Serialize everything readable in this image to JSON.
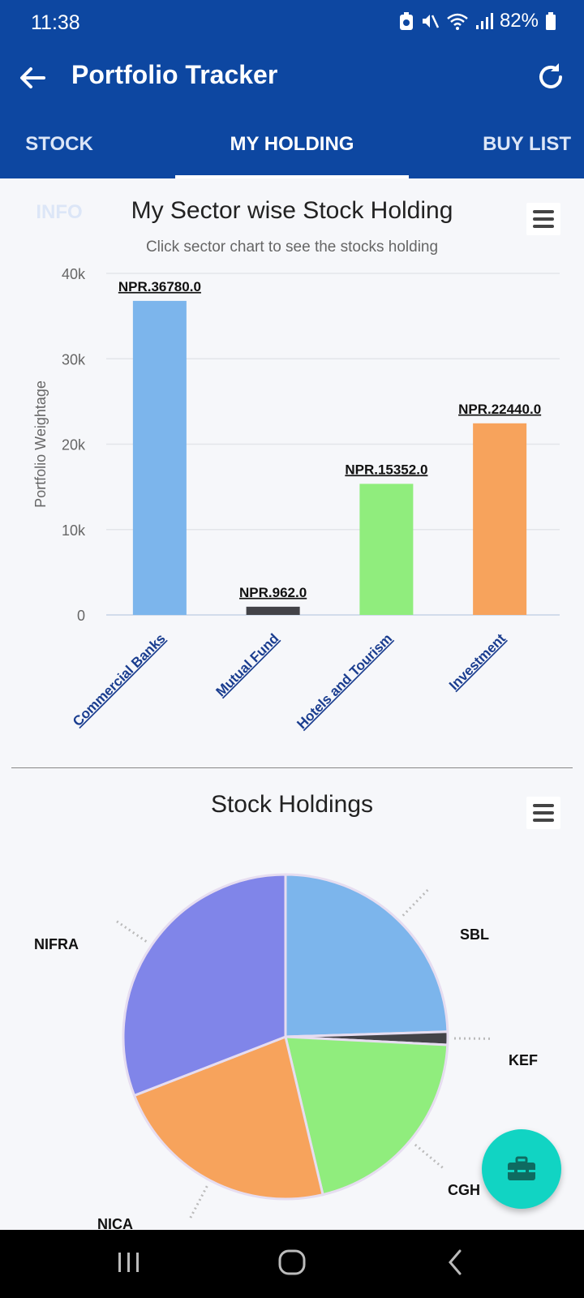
{
  "status": {
    "time": "11:38",
    "battery": "82%"
  },
  "appbar": {
    "title": "Portfolio Tracker",
    "back_icon": "arrow-left-icon",
    "refresh_icon": "refresh-icon"
  },
  "tabs": [
    {
      "label": "STOCK INFO",
      "active": false
    },
    {
      "label": "MY HOLDING",
      "active": true
    },
    {
      "label": "BUY LIST",
      "active": false
    }
  ],
  "chart_data": [
    {
      "type": "bar",
      "title": "My Sector wise Stock Holding",
      "subtitle": "Click sector chart to see the stocks holding",
      "ylabel": "Portfolio Weightage",
      "ylim": [
        0,
        40000
      ],
      "yticks": [
        "0",
        "10k",
        "20k",
        "30k",
        "40k"
      ],
      "yticks_values": [
        0,
        10000,
        20000,
        30000,
        40000
      ],
      "categories": [
        "Commercial Banks",
        "Mutual Fund",
        "Hotels and Tourism",
        "Investment"
      ],
      "values": [
        36780,
        962,
        15352,
        22440
      ],
      "data_labels": [
        "NPR.36780.0",
        "NPR.962.0",
        "NPR.15352.0",
        "NPR.22440.0"
      ],
      "colors": [
        "#7cb5ec",
        "#434348",
        "#90ed7d",
        "#f7a35c"
      ],
      "grid": true
    },
    {
      "type": "pie",
      "title": "Stock Holdings",
      "labels": [
        "SBL",
        "KEF",
        "CGH",
        "NICA",
        "NIFRA"
      ],
      "values": [
        24.5,
        1.3,
        20.5,
        22.8,
        30.9
      ],
      "colors": [
        "#7cb5ec",
        "#434348",
        "#90ed7d",
        "#f7a35c",
        "#8085e9"
      ]
    }
  ],
  "fab_icon": "toolbox-icon",
  "navbar": {
    "recents_icon": "recents-icon",
    "home_icon": "home-icon",
    "back_icon": "back-chevron-icon"
  }
}
